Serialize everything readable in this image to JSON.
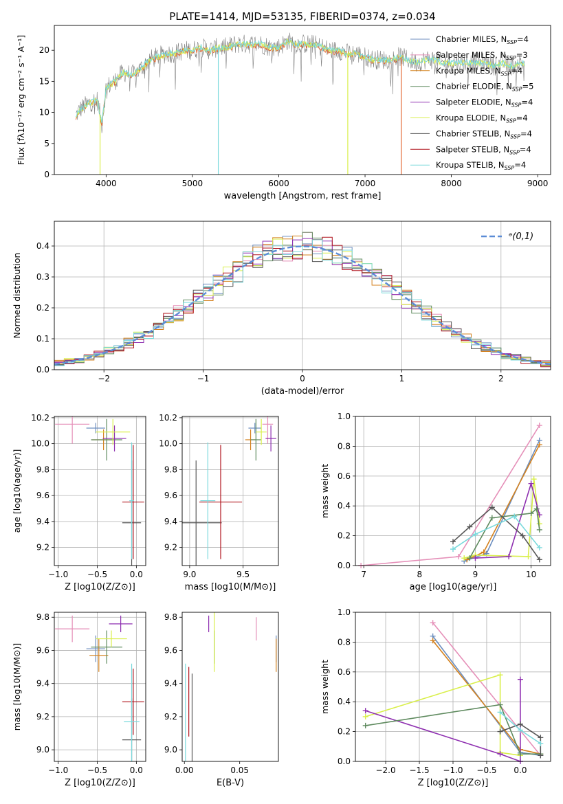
{
  "title": "PLATE=1414, MJD=53135, FIBERID=0374, z=0.034",
  "colors": {
    "chabrier_miles": "#6c8ebf",
    "salpeter_miles": "#e58fb8",
    "kroupa_miles": "#d4821f",
    "chabrier_elodie": "#5e8a5e",
    "salpeter_elodie": "#8e2fb0",
    "kroupa_elodie": "#d9ef4a",
    "chabrier_stelib": "#555555",
    "salpeter_stelib": "#b0141e",
    "kroupa_stelib": "#7ad9dc",
    "extra_orange": "#e36b34",
    "gauss": "#5b8cd6"
  },
  "chart_data": [
    {
      "type": "line",
      "name": "spectrum",
      "title": "PLATE=1414, MJD=53135, FIBERID=0374, z=0.034",
      "xlabel": "wavelength [Angstrom, rest frame]",
      "ylabel": "Flux [fλ10⁻¹⁷ erg cm⁻² s⁻¹ A⁻¹]",
      "xlim": [
        3400,
        9150
      ],
      "ylim": [
        0,
        24
      ],
      "xticks": [
        4000,
        5000,
        6000,
        7000,
        8000,
        9000
      ],
      "yticks": [
        0,
        5,
        10,
        15,
        20
      ],
      "grid": false,
      "legend_position": "top-right",
      "continuum": [
        [
          3650,
          9.5
        ],
        [
          3700,
          10.5
        ],
        [
          3800,
          11.5
        ],
        [
          3900,
          12
        ],
        [
          3950,
          8
        ],
        [
          4000,
          14
        ],
        [
          4100,
          15
        ],
        [
          4200,
          16.5
        ],
        [
          4300,
          16
        ],
        [
          4400,
          17
        ],
        [
          4500,
          18.5
        ],
        [
          4600,
          19
        ],
        [
          4700,
          19.5
        ],
        [
          4800,
          19.5
        ],
        [
          4900,
          20
        ],
        [
          5000,
          20
        ],
        [
          5100,
          20.5
        ],
        [
          5200,
          20
        ],
        [
          5300,
          20.5
        ],
        [
          5400,
          20.5
        ],
        [
          5500,
          21
        ],
        [
          5600,
          21
        ],
        [
          5700,
          21
        ],
        [
          5800,
          21
        ],
        [
          5900,
          20.5
        ],
        [
          6000,
          20.5
        ],
        [
          6100,
          21.5
        ],
        [
          6200,
          21
        ],
        [
          6300,
          21
        ],
        [
          6400,
          21
        ],
        [
          6500,
          20.5
        ],
        [
          6600,
          20
        ],
        [
          6700,
          20
        ],
        [
          6800,
          19.5
        ],
        [
          6900,
          19.5
        ],
        [
          7000,
          19
        ],
        [
          7100,
          18.5
        ],
        [
          7200,
          18.5
        ],
        [
          7300,
          18.5
        ],
        [
          7400,
          19
        ],
        [
          7500,
          18.5
        ],
        [
          7600,
          18
        ],
        [
          7700,
          18.5
        ],
        [
          7800,
          18.5
        ],
        [
          7900,
          18
        ],
        [
          8000,
          18
        ],
        [
          8100,
          18
        ],
        [
          8200,
          18
        ],
        [
          8300,
          18
        ],
        [
          8400,
          18
        ],
        [
          8500,
          17.5
        ],
        [
          8600,
          18
        ],
        [
          8700,
          17.5
        ],
        [
          8800,
          18
        ],
        [
          8850,
          18
        ]
      ],
      "dropouts": [
        {
          "x": 3930,
          "series": "Kroupa ELODIE"
        },
        {
          "x": 5300,
          "series": "Kroupa STELIB"
        },
        {
          "x": 6800,
          "series": "Kroupa ELODIE"
        },
        {
          "x": 7420,
          "series": "extra"
        }
      ],
      "legend": [
        "Chabrier MILES, N_SSP=4",
        "Salpeter MILES, N_SSP=3",
        "Kroupa MILES, N_SSP=4",
        "Chabrier ELODIE, N_SSP=5",
        "Salpeter ELODIE, N_SSP=4",
        "Kroupa ELODIE, N_SSP=4",
        "Chabrier STELIB, N_SSP=4",
        "Salpeter STELIB, N_SSP=4",
        "Kroupa STELIB, N_SSP=4"
      ]
    },
    {
      "type": "histogram",
      "name": "residuals",
      "xlabel": "(data-model)/error",
      "ylabel": "Normed distribution",
      "xlim": [
        -2.5,
        2.5
      ],
      "ylim": [
        0,
        0.48
      ],
      "xticks": [
        -2,
        -1,
        0,
        1,
        2
      ],
      "yticks": [
        0.0,
        0.1,
        0.2,
        0.3,
        0.4
      ],
      "grid": true,
      "legend_position": "top-right",
      "legend": "ᵊ(0,1)",
      "bin_width": 0.1,
      "gaussian": {
        "mean": 0,
        "sigma": 1
      }
    },
    {
      "type": "scatter",
      "name": "age_vs_Z",
      "xlabel": "Z [log10(Z/Z⊙)]",
      "ylabel": "age  [log10(age/yr)]",
      "xlim": [
        -1.05,
        0.12
      ],
      "ylim": [
        9.06,
        10.21
      ],
      "xticks": [
        -1.0,
        -0.5,
        0.0
      ],
      "yticks": [
        9.2,
        9.4,
        9.6,
        9.8,
        10.0,
        10.2
      ],
      "grid": true,
      "points": [
        {
          "x": -0.52,
          "y": 10.12,
          "xerr": 0.12,
          "yerr": 0.04,
          "s": "chabrier_miles"
        },
        {
          "x": -0.82,
          "y": 10.15,
          "xerr": 0.22,
          "yerr": 0.15,
          "s": "salpeter_miles"
        },
        {
          "x": -0.42,
          "y": 10.03,
          "xerr": 0.15,
          "yerr": 0.08,
          "s": "kroupa_miles"
        },
        {
          "x": -0.38,
          "y": 10.03,
          "xerr": 0.2,
          "yerr": 0.16,
          "s": "chabrier_elodie"
        },
        {
          "x": -0.28,
          "y": 10.04,
          "xerr": 0.15,
          "yerr": 0.1,
          "s": "salpeter_elodie"
        },
        {
          "x": -0.3,
          "y": 10.09,
          "xerr": 0.22,
          "yerr": 0.1,
          "s": "kroupa_elodie"
        },
        {
          "x": -0.06,
          "y": 9.39,
          "xerr": 0.12,
          "yerr": 0.48,
          "s": "chabrier_stelib"
        },
        {
          "x": -0.04,
          "y": 9.55,
          "xerr": 0.14,
          "yerr": 0.44,
          "s": "salpeter_stelib"
        },
        {
          "x": -0.06,
          "y": 9.56,
          "xerr": 0.03,
          "yerr": 0.45,
          "s": "kroupa_stelib"
        }
      ]
    },
    {
      "type": "scatter",
      "name": "age_vs_mass",
      "xlabel": "mass [log10(M/M⊙)]",
      "ylabel": "",
      "xlim": [
        8.93,
        9.83
      ],
      "ylim": [
        9.06,
        10.21
      ],
      "xticks": [
        9.0,
        9.5
      ],
      "yticks": [
        9.2,
        9.4,
        9.6,
        9.8,
        10.0,
        10.2
      ],
      "grid": true,
      "points": [
        {
          "x": 9.61,
          "y": 10.12,
          "xerr": 0.06,
          "yerr": 0.04,
          "s": "chabrier_miles"
        },
        {
          "x": 9.73,
          "y": 10.15,
          "xerr": 0.05,
          "yerr": 0.15,
          "s": "salpeter_miles"
        },
        {
          "x": 9.57,
          "y": 10.03,
          "xerr": 0.05,
          "yerr": 0.08,
          "s": "kroupa_miles"
        },
        {
          "x": 9.62,
          "y": 10.03,
          "xerr": 0.05,
          "yerr": 0.16,
          "s": "chabrier_elodie"
        },
        {
          "x": 9.76,
          "y": 10.04,
          "xerr": 0.05,
          "yerr": 0.1,
          "s": "salpeter_elodie"
        },
        {
          "x": 9.67,
          "y": 10.09,
          "xerr": 0.05,
          "yerr": 0.1,
          "s": "kroupa_elodie"
        },
        {
          "x": 9.06,
          "y": 9.39,
          "xerr": 0.24,
          "yerr": 0.48,
          "s": "chabrier_stelib"
        },
        {
          "x": 9.29,
          "y": 9.55,
          "xerr": 0.2,
          "yerr": 0.44,
          "s": "salpeter_stelib"
        },
        {
          "x": 9.17,
          "y": 9.56,
          "xerr": 0.07,
          "yerr": 0.45,
          "s": "kroupa_stelib"
        }
      ]
    },
    {
      "type": "line",
      "name": "massweight_vs_age",
      "xlabel": "age  [log10(age/yr)]",
      "ylabel": "mass weight",
      "xlim": [
        6.85,
        10.35
      ],
      "ylim": [
        0,
        1.0
      ],
      "xticks": [
        7,
        8,
        9,
        10
      ],
      "yticks": [
        0.0,
        0.2,
        0.4,
        0.6,
        0.8,
        1.0
      ],
      "grid": true,
      "series": [
        {
          "s": "salpeter_miles",
          "x": [
            6.95,
            8.7,
            10.15
          ],
          "y": [
            0.0,
            0.06,
            0.94
          ]
        },
        {
          "s": "chabrier_miles",
          "x": [
            8.8,
            9.2,
            10.15
          ],
          "y": [
            0.03,
            0.08,
            0.84
          ]
        },
        {
          "s": "kroupa_miles",
          "x": [
            8.85,
            9.15,
            10.15
          ],
          "y": [
            0.04,
            0.09,
            0.81
          ]
        },
        {
          "s": "kroupa_elodie",
          "x": [
            8.8,
            9.0,
            9.95,
            10.05,
            10.15
          ],
          "y": [
            0.05,
            0.07,
            0.06,
            0.58,
            0.28
          ]
        },
        {
          "s": "salpeter_elodie",
          "x": [
            9.0,
            9.6,
            10.0,
            10.15
          ],
          "y": [
            0.05,
            0.06,
            0.55,
            0.34
          ]
        },
        {
          "s": "chabrier_elodie",
          "x": [
            8.9,
            9.3,
            10.0,
            10.1,
            10.15
          ],
          "y": [
            0.05,
            0.32,
            0.35,
            0.38,
            0.24
          ]
        },
        {
          "s": "chabrier_stelib",
          "x": [
            8.6,
            8.9,
            9.3,
            9.85,
            10.15
          ],
          "y": [
            0.16,
            0.26,
            0.39,
            0.2,
            0.04
          ]
        },
        {
          "s": "kroupa_stelib",
          "x": [
            8.6,
            9.0,
            9.7,
            10.15
          ],
          "y": [
            0.11,
            0.21,
            0.33,
            0.12
          ]
        }
      ]
    },
    {
      "type": "scatter",
      "name": "mass_vs_Z",
      "xlabel": "Z [log10(Z/Z⊙)]",
      "ylabel": "mass [log10(M/M⊙)]",
      "xlim": [
        -1.05,
        0.12
      ],
      "ylim": [
        8.93,
        9.83
      ],
      "xticks": [
        -1.0,
        -0.5,
        0.0
      ],
      "yticks": [
        9.0,
        9.2,
        9.4,
        9.6,
        9.8
      ],
      "grid": true,
      "points": [
        {
          "x": -0.52,
          "y": 9.61,
          "xerr": 0.12,
          "yerr": 0.08,
          "s": "chabrier_miles"
        },
        {
          "x": -0.82,
          "y": 9.73,
          "xerr": 0.22,
          "yerr": 0.08,
          "s": "salpeter_miles"
        },
        {
          "x": -0.48,
          "y": 9.57,
          "xerr": 0.12,
          "yerr": 0.1,
          "s": "kroupa_miles"
        },
        {
          "x": -0.38,
          "y": 9.62,
          "xerr": 0.2,
          "yerr": 0.1,
          "s": "chabrier_elodie"
        },
        {
          "x": -0.2,
          "y": 9.76,
          "xerr": 0.15,
          "yerr": 0.05,
          "s": "salpeter_elodie"
        },
        {
          "x": -0.32,
          "y": 9.67,
          "xerr": 0.2,
          "yerr": 0.05,
          "s": "kroupa_elodie"
        },
        {
          "x": -0.06,
          "y": 9.06,
          "xerr": 0.12,
          "yerr": 0.25,
          "s": "chabrier_stelib"
        },
        {
          "x": -0.04,
          "y": 9.29,
          "xerr": 0.14,
          "yerr": 0.2,
          "s": "salpeter_stelib"
        },
        {
          "x": -0.06,
          "y": 9.17,
          "xerr": 0.1,
          "yerr": 0.35,
          "s": "kroupa_stelib"
        }
      ]
    },
    {
      "type": "scatter",
      "name": "mass_vs_ebv",
      "xlabel": "E(B-V)",
      "ylabel": "",
      "xlim": [
        -0.002,
        0.085
      ],
      "ylim": [
        8.93,
        9.83
      ],
      "xticks": [
        0.0,
        0.05
      ],
      "yticks": [
        9.0,
        9.2,
        9.4,
        9.6,
        9.8
      ],
      "grid": false,
      "points": [
        {
          "x": 0.083,
          "y": 9.61,
          "yerr": 0.08,
          "s": "chabrier_miles"
        },
        {
          "x": 0.065,
          "y": 9.73,
          "yerr": 0.07,
          "s": "salpeter_miles"
        },
        {
          "x": 0.083,
          "y": 9.57,
          "yerr": 0.1,
          "s": "kroupa_miles"
        },
        {
          "x": 0.027,
          "y": 9.62,
          "yerr": 0.1,
          "s": "chabrier_elodie"
        },
        {
          "x": 0.022,
          "y": 9.76,
          "yerr": 0.05,
          "s": "salpeter_elodie"
        },
        {
          "x": 0.027,
          "y": 9.67,
          "yerr": 0.2,
          "s": "kroupa_elodie"
        },
        {
          "x": 0.007,
          "y": 9.06,
          "yerr": 0.4,
          "s": "chabrier_stelib"
        },
        {
          "x": 0.004,
          "y": 9.29,
          "yerr": 0.21,
          "s": "salpeter_stelib"
        },
        {
          "x": 0.001,
          "y": 9.17,
          "yerr": 0.35,
          "s": "kroupa_stelib"
        }
      ]
    },
    {
      "type": "line",
      "name": "massweight_vs_Z",
      "xlabel": "Z [log10(Z/Z⊙)]",
      "ylabel": "mass weight",
      "xlim": [
        -2.45,
        0.45
      ],
      "ylim": [
        0,
        1.0
      ],
      "xticks": [
        -2.0,
        -1.5,
        -1.0,
        -0.5,
        0.0
      ],
      "yticks": [
        0.0,
        0.2,
        0.4,
        0.6,
        0.8,
        1.0
      ],
      "grid": true,
      "series": [
        {
          "s": "salpeter_miles",
          "x": [
            -1.3,
            0.3
          ],
          "y": [
            0.93,
            0.04
          ]
        },
        {
          "s": "chabrier_miles",
          "x": [
            -1.3,
            0.0,
            0.3
          ],
          "y": [
            0.84,
            0.06,
            0.04
          ]
        },
        {
          "s": "kroupa_miles",
          "x": [
            -1.3,
            0.0,
            0.3
          ],
          "y": [
            0.81,
            0.08,
            0.05
          ]
        },
        {
          "s": "kroupa_elodie",
          "x": [
            -2.3,
            -0.3,
            -0.3,
            0.0
          ],
          "y": [
            0.3,
            0.58,
            0.06,
            0.04
          ]
        },
        {
          "s": "salpeter_elodie",
          "x": [
            -2.3,
            -0.3,
            0.0,
            0.0
          ],
          "y": [
            0.34,
            0.05,
            0.0,
            0.55
          ]
        },
        {
          "s": "chabrier_elodie",
          "x": [
            -2.3,
            -0.3,
            0.0,
            0.3
          ],
          "y": [
            0.24,
            0.38,
            0.05,
            0.05
          ]
        },
        {
          "s": "chabrier_stelib",
          "x": [
            -0.3,
            0.0,
            0.3,
            0.3
          ],
          "y": [
            0.2,
            0.25,
            0.16,
            0.04
          ]
        },
        {
          "s": "kroupa_stelib",
          "x": [
            -0.3,
            0.0,
            0.3
          ],
          "y": [
            0.33,
            0.21,
            0.12
          ]
        }
      ]
    }
  ]
}
